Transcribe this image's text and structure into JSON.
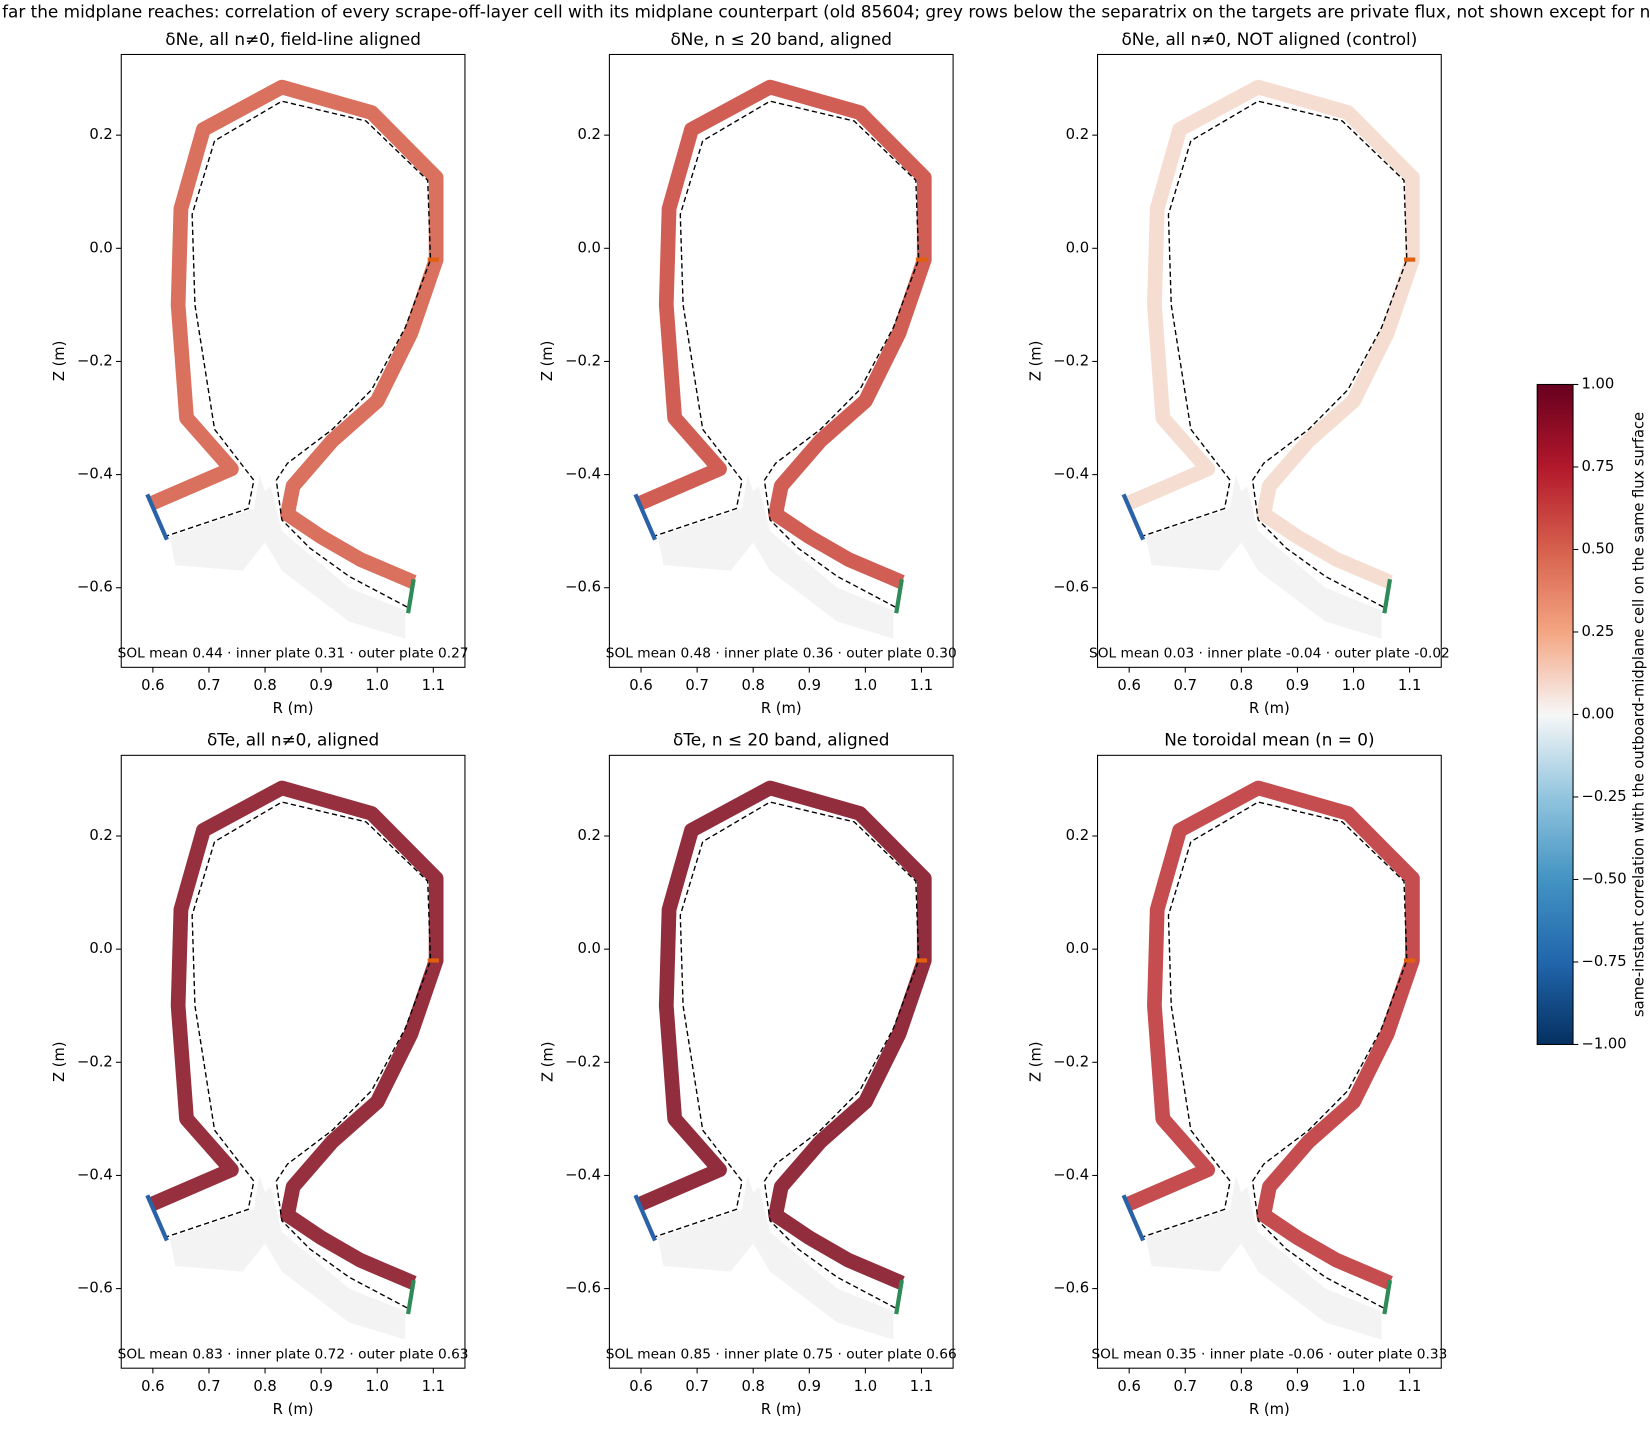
{
  "title": "far the midplane reaches: correlation of every scrape-off-layer cell with its midplane counterpart (old 85604; grey rows below the separatrix on the targets are private flux, not shown except for n",
  "chart_data": [
    {
      "type": "map",
      "title": "δNe, all n≠0, field-line aligned",
      "annotation": "SOL mean 0.44 · inner plate 0.31 · outer plate 0.27",
      "color": "#d6604d",
      "xlabel": "R (m)",
      "ylabel": "Z (m)",
      "xlim": [
        0.5436,
        1.1564
      ],
      "ylim": [
        -0.7407,
        0.3426
      ],
      "xticks": [
        0.6,
        0.7,
        0.8,
        0.9,
        {
          "value": 1,
          "label": "1.0"
        },
        1.1
      ],
      "yticks": [
        {
          "value": -0.6,
          "label": "−0.6"
        },
        {
          "value": -0.4,
          "label": "−0.4"
        },
        {
          "value": -0.2,
          "label": "−0.2"
        },
        {
          "value": 0,
          "label": "0.0"
        },
        0.2
      ]
    },
    {
      "type": "map",
      "title": "δNe, n ≤ 20 band, aligned",
      "annotation": "SOL mean 0.48 · inner plate 0.36 · outer plate 0.30",
      "color": "#cc4c43",
      "xlabel": "R (m)",
      "ylabel": "Z (m)",
      "xlim": [
        0.5436,
        1.1564
      ],
      "ylim": [
        -0.7407,
        0.3426
      ],
      "xticks": [
        0.6,
        0.7,
        0.8,
        0.9,
        {
          "value": 1,
          "label": "1.0"
        },
        1.1
      ],
      "yticks": [
        {
          "value": -0.6,
          "label": "−0.6"
        },
        {
          "value": -0.4,
          "label": "−0.4"
        },
        {
          "value": -0.2,
          "label": "−0.2"
        },
        {
          "value": 0,
          "label": "0.0"
        },
        0.2
      ]
    },
    {
      "type": "map",
      "title": "δNe, all n≠0, NOT aligned (control)",
      "annotation": "SOL mean 0.03 · inner plate -0.04 · outer plate -0.02",
      "color": "#f4d9cc",
      "xlabel": "R (m)",
      "ylabel": "Z (m)",
      "xlim": [
        0.5436,
        1.1564
      ],
      "ylim": [
        -0.7407,
        0.3426
      ],
      "xticks": [
        0.6,
        0.7,
        0.8,
        0.9,
        {
          "value": 1,
          "label": "1.0"
        },
        1.1
      ],
      "yticks": [
        {
          "value": -0.6,
          "label": "−0.6"
        },
        {
          "value": -0.4,
          "label": "−0.4"
        },
        {
          "value": -0.2,
          "label": "−0.2"
        },
        {
          "value": 0,
          "label": "0.0"
        },
        0.2
      ]
    },
    {
      "type": "map",
      "title": "δTe, all n≠0, aligned",
      "annotation": "SOL mean 0.83 · inner plate 0.72 · outer plate 0.63",
      "color": "#8b1a2a",
      "xlabel": "R (m)",
      "ylabel": "Z (m)",
      "xlim": [
        0.5436,
        1.1564
      ],
      "ylim": [
        -0.7407,
        0.3426
      ],
      "xticks": [
        0.6,
        0.7,
        0.8,
        0.9,
        {
          "value": 1,
          "label": "1.0"
        },
        1.1
      ],
      "yticks": [
        {
          "value": -0.6,
          "label": "−0.6"
        },
        {
          "value": -0.4,
          "label": "−0.4"
        },
        {
          "value": -0.2,
          "label": "−0.2"
        },
        {
          "value": 0,
          "label": "0.0"
        },
        0.2
      ]
    },
    {
      "type": "map",
      "title": "δTe, n ≤ 20 band, aligned",
      "annotation": "SOL mean 0.85 · inner plate 0.75 · outer plate 0.66",
      "color": "#861628",
      "xlabel": "R (m)",
      "ylabel": "Z (m)",
      "xlim": [
        0.5436,
        1.1564
      ],
      "ylim": [
        -0.7407,
        0.3426
      ],
      "xticks": [
        0.6,
        0.7,
        0.8,
        0.9,
        {
          "value": 1,
          "label": "1.0"
        },
        1.1
      ],
      "yticks": [
        {
          "value": -0.6,
          "label": "−0.6"
        },
        {
          "value": -0.4,
          "label": "−0.4"
        },
        {
          "value": -0.2,
          "label": "−0.2"
        },
        {
          "value": 0,
          "label": "0.0"
        },
        0.2
      ]
    },
    {
      "type": "map",
      "title": "Ne toroidal mean (n = 0)",
      "annotation": "SOL mean 0.35 · inner plate -0.06 · outer plate 0.33",
      "color": "#c03a3c",
      "xlabel": "R (m)",
      "ylabel": "Z (m)",
      "xlim": [
        0.5436,
        1.1564
      ],
      "ylim": [
        -0.7407,
        0.3426
      ],
      "xticks": [
        0.6,
        0.7,
        0.8,
        0.9,
        {
          "value": 1,
          "label": "1.0"
        },
        1.1
      ],
      "yticks": [
        {
          "value": -0.6,
          "label": "−0.6"
        },
        {
          "value": -0.4,
          "label": "−0.4"
        },
        {
          "value": -0.2,
          "label": "−0.2"
        },
        {
          "value": 0,
          "label": "0.0"
        },
        0.2
      ]
    },
    {
      "type": "colorbar",
      "label": "same-instant correlation with the outboard-midplane cell on the same flux surface",
      "colormap": "RdBu_r",
      "ylim": [
        -1,
        1
      ],
      "yticks": [
        {
          "value": -1,
          "label": "−1.00"
        },
        {
          "value": -0.75,
          "label": "−0.75"
        },
        {
          "value": -0.5,
          "label": "−0.50"
        },
        {
          "value": -0.25,
          "label": "−0.25"
        },
        {
          "value": 0,
          "label": "0.00"
        },
        {
          "value": 0.25,
          "label": "0.25"
        },
        {
          "value": 0.5,
          "label": "0.50"
        },
        {
          "value": 0.75,
          "label": "0.75"
        },
        {
          "value": 1,
          "label": "1.00"
        }
      ]
    }
  ]
}
